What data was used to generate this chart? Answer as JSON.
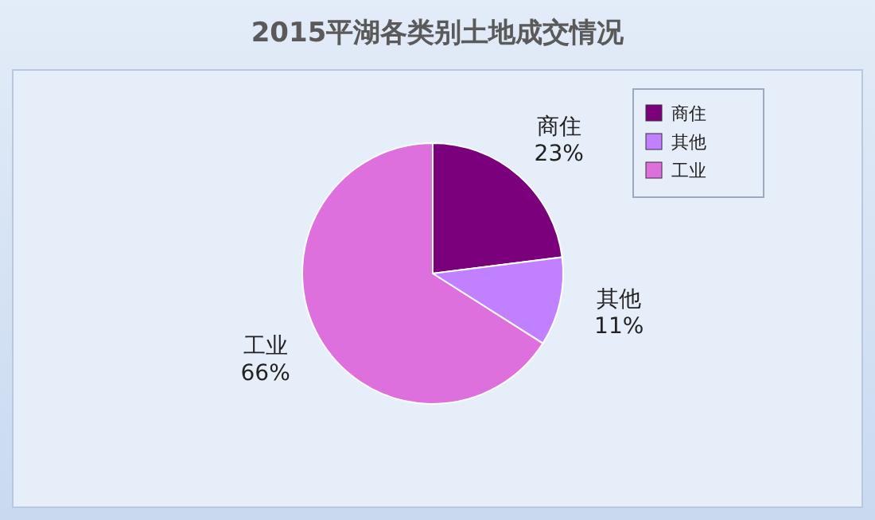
{
  "chart_data": {
    "type": "pie",
    "title": "2015平湖各类别土地成交情况",
    "categories": [
      "商住",
      "其他",
      "工业"
    ],
    "values": [
      23,
      11,
      66
    ],
    "value_labels": [
      "23%",
      "11%",
      "66%"
    ],
    "colors": [
      "#7b007b",
      "#c080ff",
      "#dd70dd"
    ],
    "legend": "top right"
  }
}
